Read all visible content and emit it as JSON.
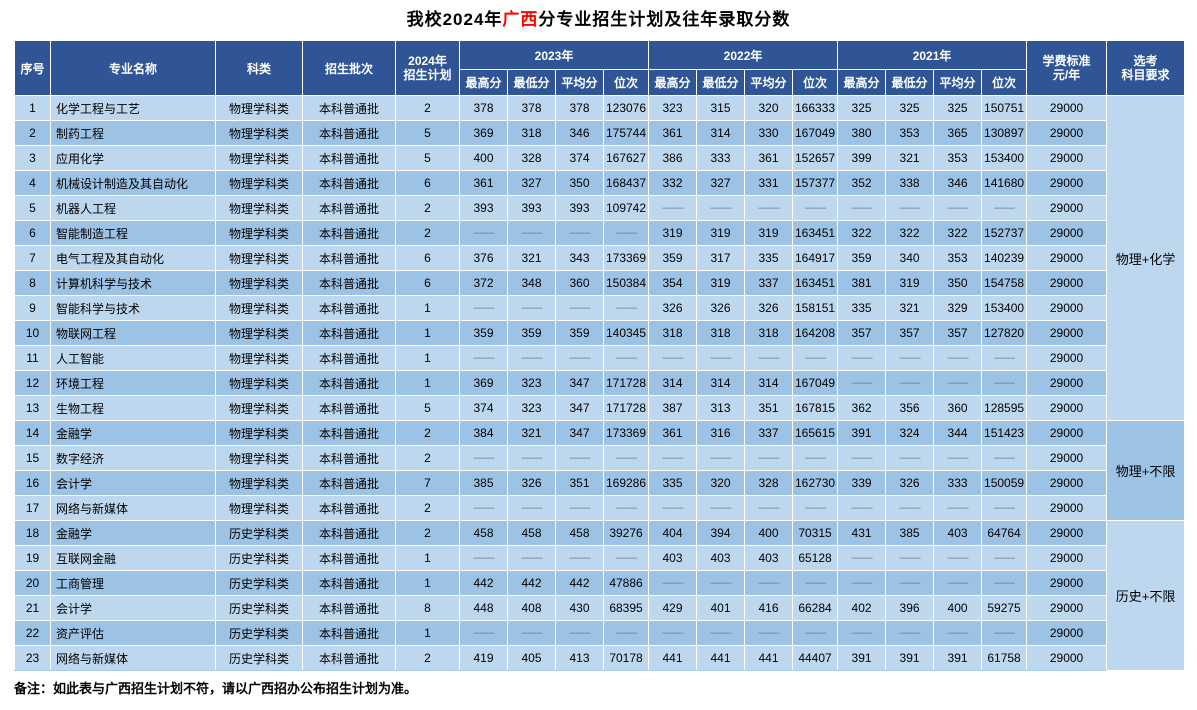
{
  "title": {
    "prefix": "我校2024年",
    "highlight": "广西",
    "suffix": "分专业招生计划及往年录取分数"
  },
  "colors": {
    "header_bg": "#2F5597",
    "header_text": "#FFFFFF",
    "row_light": "#BDD7EE",
    "row_dark": "#9CC2E5",
    "grid": "#FFFFFF",
    "title_highlight": "#FF0000",
    "dash": "#6B7B8D",
    "body_text": "#000000"
  },
  "table": {
    "empty_marker": "——",
    "headers": {
      "index": "序号",
      "major": "专业名称",
      "category": "科类",
      "batch": "招生批次",
      "plan2024": "2024年\n招生计划",
      "tuition": "学费标准\n元/年",
      "subject_req": "选考\n科目要求"
    },
    "year_groups": [
      "2023年",
      "2022年",
      "2021年"
    ],
    "sub_headers": [
      "最高分",
      "最低分",
      "平均分",
      "位次"
    ],
    "rows": [
      {
        "no": "1",
        "major": "化学工程与工艺",
        "category": "物理学科类",
        "batch": "本科普通批",
        "plan": "2",
        "y2023": [
          "378",
          "378",
          "378",
          "123076"
        ],
        "y2022": [
          "323",
          "315",
          "320",
          "166333"
        ],
        "y2021": [
          "325",
          "325",
          "325",
          "150751"
        ],
        "tuition": "29000"
      },
      {
        "no": "2",
        "major": "制药工程",
        "category": "物理学科类",
        "batch": "本科普通批",
        "plan": "5",
        "y2023": [
          "369",
          "318",
          "346",
          "175744"
        ],
        "y2022": [
          "361",
          "314",
          "330",
          "167049"
        ],
        "y2021": [
          "380",
          "353",
          "365",
          "130897"
        ],
        "tuition": "29000"
      },
      {
        "no": "3",
        "major": "应用化学",
        "category": "物理学科类",
        "batch": "本科普通批",
        "plan": "5",
        "y2023": [
          "400",
          "328",
          "374",
          "167627"
        ],
        "y2022": [
          "386",
          "333",
          "361",
          "152657"
        ],
        "y2021": [
          "399",
          "321",
          "353",
          "153400"
        ],
        "tuition": "29000"
      },
      {
        "no": "4",
        "major": "机械设计制造及其自动化",
        "category": "物理学科类",
        "batch": "本科普通批",
        "plan": "6",
        "y2023": [
          "361",
          "327",
          "350",
          "168437"
        ],
        "y2022": [
          "332",
          "327",
          "331",
          "157377"
        ],
        "y2021": [
          "352",
          "338",
          "346",
          "141680"
        ],
        "tuition": "29000"
      },
      {
        "no": "5",
        "major": "机器人工程",
        "category": "物理学科类",
        "batch": "本科普通批",
        "plan": "2",
        "y2023": [
          "393",
          "393",
          "393",
          "109742"
        ],
        "y2022": [
          "——",
          "——",
          "——",
          "——"
        ],
        "y2021": [
          "——",
          "——",
          "——",
          "——"
        ],
        "tuition": "29000"
      },
      {
        "no": "6",
        "major": "智能制造工程",
        "category": "物理学科类",
        "batch": "本科普通批",
        "plan": "2",
        "y2023": [
          "——",
          "——",
          "——",
          "——"
        ],
        "y2022": [
          "319",
          "319",
          "319",
          "163451"
        ],
        "y2021": [
          "322",
          "322",
          "322",
          "152737"
        ],
        "tuition": "29000"
      },
      {
        "no": "7",
        "major": "电气工程及其自动化",
        "category": "物理学科类",
        "batch": "本科普通批",
        "plan": "6",
        "y2023": [
          "376",
          "321",
          "343",
          "173369"
        ],
        "y2022": [
          "359",
          "317",
          "335",
          "164917"
        ],
        "y2021": [
          "359",
          "340",
          "353",
          "140239"
        ],
        "tuition": "29000"
      },
      {
        "no": "8",
        "major": "计算机科学与技术",
        "category": "物理学科类",
        "batch": "本科普通批",
        "plan": "6",
        "y2023": [
          "372",
          "348",
          "360",
          "150384"
        ],
        "y2022": [
          "354",
          "319",
          "337",
          "163451"
        ],
        "y2021": [
          "381",
          "319",
          "350",
          "154758"
        ],
        "tuition": "29000"
      },
      {
        "no": "9",
        "major": "智能科学与技术",
        "category": "物理学科类",
        "batch": "本科普通批",
        "plan": "1",
        "y2023": [
          "——",
          "——",
          "——",
          "——"
        ],
        "y2022": [
          "326",
          "326",
          "326",
          "158151"
        ],
        "y2021": [
          "335",
          "321",
          "329",
          "153400"
        ],
        "tuition": "29000"
      },
      {
        "no": "10",
        "major": "物联网工程",
        "category": "物理学科类",
        "batch": "本科普通批",
        "plan": "1",
        "y2023": [
          "359",
          "359",
          "359",
          "140345"
        ],
        "y2022": [
          "318",
          "318",
          "318",
          "164208"
        ],
        "y2021": [
          "357",
          "357",
          "357",
          "127820"
        ],
        "tuition": "29000"
      },
      {
        "no": "11",
        "major": "人工智能",
        "category": "物理学科类",
        "batch": "本科普通批",
        "plan": "1",
        "y2023": [
          "——",
          "——",
          "——",
          "——"
        ],
        "y2022": [
          "——",
          "——",
          "——",
          "——"
        ],
        "y2021": [
          "——",
          "——",
          "——",
          "——"
        ],
        "tuition": "29000"
      },
      {
        "no": "12",
        "major": "环境工程",
        "category": "物理学科类",
        "batch": "本科普通批",
        "plan": "1",
        "y2023": [
          "369",
          "323",
          "347",
          "171728"
        ],
        "y2022": [
          "314",
          "314",
          "314",
          "167049"
        ],
        "y2021": [
          "——",
          "——",
          "——",
          "——"
        ],
        "tuition": "29000"
      },
      {
        "no": "13",
        "major": "生物工程",
        "category": "物理学科类",
        "batch": "本科普通批",
        "plan": "5",
        "y2023": [
          "374",
          "323",
          "347",
          "171728"
        ],
        "y2022": [
          "387",
          "313",
          "351",
          "167815"
        ],
        "y2021": [
          "362",
          "356",
          "360",
          "128595"
        ],
        "tuition": "29000"
      },
      {
        "no": "14",
        "major": "金融学",
        "category": "物理学科类",
        "batch": "本科普通批",
        "plan": "2",
        "y2023": [
          "384",
          "321",
          "347",
          "173369"
        ],
        "y2022": [
          "361",
          "316",
          "337",
          "165615"
        ],
        "y2021": [
          "391",
          "324",
          "344",
          "151423"
        ],
        "tuition": "29000"
      },
      {
        "no": "15",
        "major": "数字经济",
        "category": "物理学科类",
        "batch": "本科普通批",
        "plan": "2",
        "y2023": [
          "——",
          "——",
          "——",
          "——"
        ],
        "y2022": [
          "——",
          "——",
          "——",
          "——"
        ],
        "y2021": [
          "——",
          "——",
          "——",
          "——"
        ],
        "tuition": "29000"
      },
      {
        "no": "16",
        "major": "会计学",
        "category": "物理学科类",
        "batch": "本科普通批",
        "plan": "7",
        "y2023": [
          "385",
          "326",
          "351",
          "169286"
        ],
        "y2022": [
          "335",
          "320",
          "328",
          "162730"
        ],
        "y2021": [
          "339",
          "326",
          "333",
          "150059"
        ],
        "tuition": "29000"
      },
      {
        "no": "17",
        "major": "网络与新媒体",
        "category": "物理学科类",
        "batch": "本科普通批",
        "plan": "2",
        "y2023": [
          "——",
          "——",
          "——",
          "——"
        ],
        "y2022": [
          "——",
          "——",
          "——",
          "——"
        ],
        "y2021": [
          "——",
          "——",
          "——",
          "——"
        ],
        "tuition": "29000"
      },
      {
        "no": "18",
        "major": "金融学",
        "category": "历史学科类",
        "batch": "本科普通批",
        "plan": "2",
        "y2023": [
          "458",
          "458",
          "458",
          "39276"
        ],
        "y2022": [
          "404",
          "394",
          "400",
          "70315"
        ],
        "y2021": [
          "431",
          "385",
          "403",
          "64764"
        ],
        "tuition": "29000"
      },
      {
        "no": "19",
        "major": "互联网金融",
        "category": "历史学科类",
        "batch": "本科普通批",
        "plan": "1",
        "y2023": [
          "——",
          "——",
          "——",
          "——"
        ],
        "y2022": [
          "403",
          "403",
          "403",
          "65128"
        ],
        "y2021": [
          "——",
          "——",
          "——",
          "——"
        ],
        "tuition": "29000"
      },
      {
        "no": "20",
        "major": "工商管理",
        "category": "历史学科类",
        "batch": "本科普通批",
        "plan": "1",
        "y2023": [
          "442",
          "442",
          "442",
          "47886"
        ],
        "y2022": [
          "——",
          "——",
          "——",
          "——"
        ],
        "y2021": [
          "——",
          "——",
          "——",
          "——"
        ],
        "tuition": "29000"
      },
      {
        "no": "21",
        "major": "会计学",
        "category": "历史学科类",
        "batch": "本科普通批",
        "plan": "8",
        "y2023": [
          "448",
          "408",
          "430",
          "68395"
        ],
        "y2022": [
          "429",
          "401",
          "416",
          "66284"
        ],
        "y2021": [
          "402",
          "396",
          "400",
          "59275"
        ],
        "tuition": "29000"
      },
      {
        "no": "22",
        "major": "资产评估",
        "category": "历史学科类",
        "batch": "本科普通批",
        "plan": "1",
        "y2023": [
          "——",
          "——",
          "——",
          "——"
        ],
        "y2022": [
          "——",
          "——",
          "——",
          "——"
        ],
        "y2021": [
          "——",
          "——",
          "——",
          "——"
        ],
        "tuition": "29000"
      },
      {
        "no": "23",
        "major": "网络与新媒体",
        "category": "历史学科类",
        "batch": "本科普通批",
        "plan": "2",
        "y2023": [
          "419",
          "405",
          "413",
          "70178"
        ],
        "y2022": [
          "441",
          "441",
          "441",
          "44407"
        ],
        "y2021": [
          "391",
          "391",
          "391",
          "61758"
        ],
        "tuition": "29000"
      }
    ],
    "requirement_groups": [
      {
        "label": "物理+化学",
        "start": 0,
        "span": 13
      },
      {
        "label": "物理+不限",
        "start": 13,
        "span": 4
      },
      {
        "label": "历史+不限",
        "start": 17,
        "span": 6
      }
    ]
  },
  "footer": {
    "note": "备注：如此表与广西招生计划不符，请以广西招办公布招生计划为准。"
  }
}
